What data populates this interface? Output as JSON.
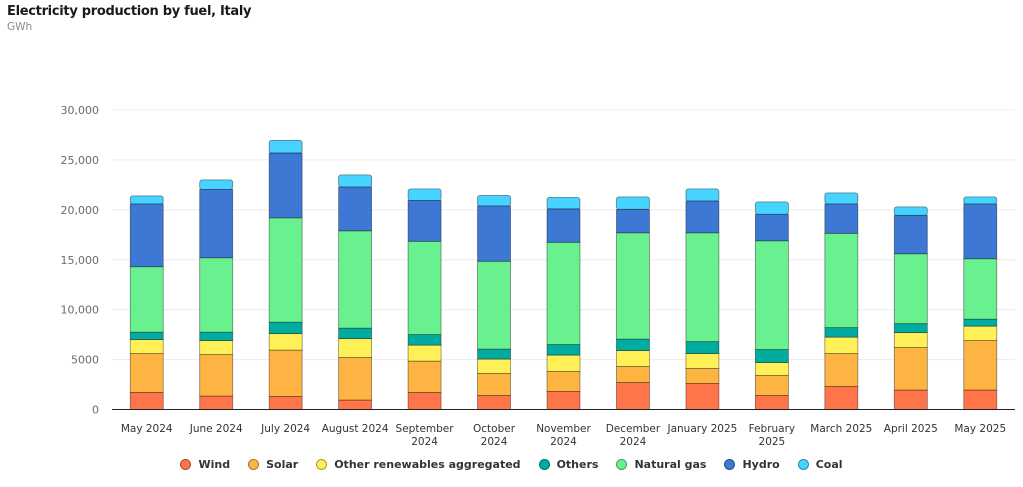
{
  "header": {
    "title": "Electricity production by fuel, Italy",
    "unit": "GWh"
  },
  "chart_data": {
    "type": "bar",
    "stacked": true,
    "title": "Electricity production by fuel, Italy",
    "subtitle": "GWh",
    "xlabel": "",
    "ylabel": "GWh",
    "ylim": [
      0,
      30000
    ],
    "yticks": [
      0,
      5000,
      10000,
      15000,
      20000,
      25000,
      30000
    ],
    "ytick_labels": [
      "0",
      "5000",
      "10,000",
      "15,000",
      "20,000",
      "25,000",
      "30,000"
    ],
    "grid": true,
    "legend_position": "bottom",
    "categories": [
      "May 2024",
      "June 2024",
      "July 2024",
      "August 2024",
      "September 2024",
      "October 2024",
      "November 2024",
      "December 2024",
      "January 2025",
      "February 2025",
      "March 2025",
      "April 2025",
      "May 2025"
    ],
    "category_label_lines": [
      [
        "May 2024"
      ],
      [
        "June 2024"
      ],
      [
        "July 2024"
      ],
      [
        "August 2024"
      ],
      [
        "September",
        "2024"
      ],
      [
        "October",
        "2024"
      ],
      [
        "November",
        "2024"
      ],
      [
        "December",
        "2024"
      ],
      [
        "January 2025"
      ],
      [
        "February",
        "2025"
      ],
      [
        "March 2025"
      ],
      [
        "April 2025"
      ],
      [
        "May 2025"
      ]
    ],
    "series": [
      {
        "name": "Wind",
        "color": "#FF7449",
        "values": [
          1700,
          1350,
          1300,
          950,
          1700,
          1400,
          1800,
          2700,
          2600,
          1400,
          2300,
          1950,
          1950
        ]
      },
      {
        "name": "Solar",
        "color": "#FDB443",
        "values": [
          3900,
          4150,
          4650,
          4250,
          3150,
          2200,
          2000,
          1600,
          1500,
          2000,
          3300,
          4250,
          4950
        ]
      },
      {
        "name": "Other renewables aggregated",
        "color": "#FFF057",
        "values": [
          1400,
          1400,
          1650,
          1900,
          1600,
          1450,
          1650,
          1600,
          1500,
          1300,
          1650,
          1500,
          1450
        ]
      },
      {
        "name": "Others",
        "color": "#00ABA0",
        "values": [
          750,
          850,
          1150,
          1050,
          1050,
          1000,
          1050,
          1150,
          1200,
          1300,
          950,
          900,
          700
        ]
      },
      {
        "name": "Natural gas",
        "color": "#69F190",
        "values": [
          6550,
          7450,
          10450,
          9750,
          9350,
          8800,
          10250,
          10650,
          10900,
          10900,
          9450,
          7000,
          6050
        ]
      },
      {
        "name": "Hydro",
        "color": "#3D78D4",
        "values": [
          6300,
          6850,
          6500,
          4400,
          4100,
          5550,
          3350,
          2350,
          3200,
          2650,
          2950,
          3850,
          5500
        ]
      },
      {
        "name": "Coal",
        "color": "#47D3FF",
        "values": [
          800,
          950,
          1250,
          1200,
          1150,
          1050,
          1150,
          1250,
          1200,
          1250,
          1100,
          850,
          700
        ]
      }
    ]
  }
}
